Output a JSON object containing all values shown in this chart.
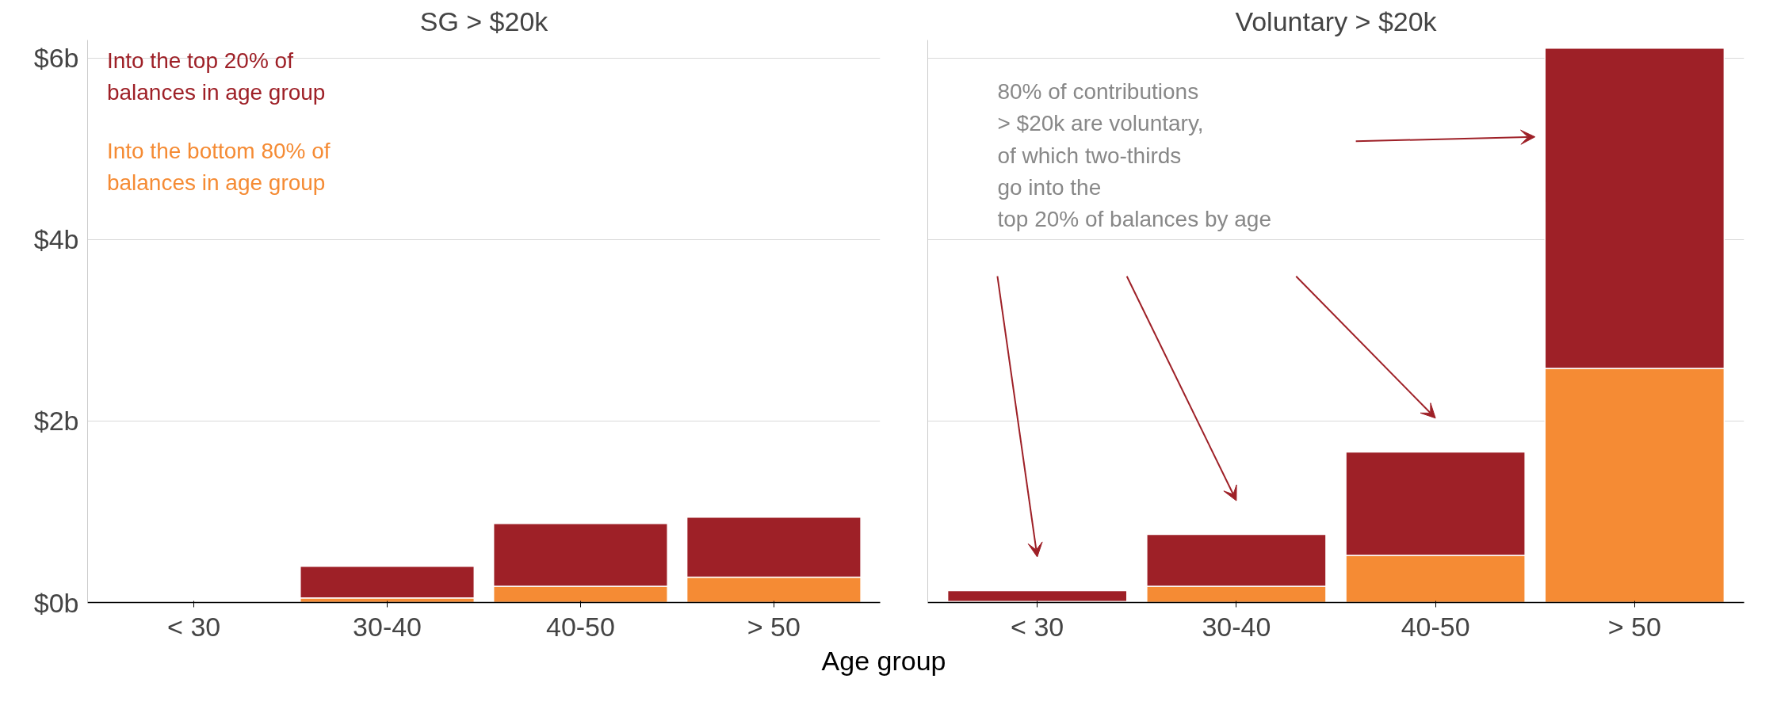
{
  "chart_data": [
    {
      "type": "bar",
      "title": "SG > $20k",
      "xlabel": "Age group",
      "stacked": true,
      "categories": [
        "< 30",
        "30-40",
        "40-50",
        "> 50"
      ],
      "ylim": [
        0,
        6.2
      ],
      "yticks": [
        {
          "value": 0,
          "label": "$0b"
        },
        {
          "value": 2,
          "label": "$2b"
        },
        {
          "value": 4,
          "label": "$4b"
        },
        {
          "value": 6,
          "label": "$6b"
        }
      ],
      "grid": "y",
      "legend": "top left",
      "series": [
        {
          "name": "Into the bottom 80% of balances in age group",
          "color": "#f58b34",
          "values": [
            null,
            0.05,
            0.18,
            0.28
          ]
        },
        {
          "name": "Into the top 20% of balances in age group",
          "color": "#9e2027",
          "values": [
            0.01,
            0.35,
            0.69,
            0.66
          ]
        }
      ]
    },
    {
      "type": "bar",
      "title": "Voluntary > $20k",
      "stacked": true,
      "categories": [
        "< 30",
        "30-40",
        "40-50",
        "> 50"
      ],
      "ylim": [
        0,
        6.2
      ],
      "yticks": [
        0,
        2,
        4,
        6
      ],
      "grid": "y",
      "tick_labels": "x",
      "annotations": [
        "80% of contributions\n> $20k are voluntary,\nof which two-thirds\ngo into the\ntop 20% of balances by age"
      ],
      "series": [
        {
          "color": "#f58b34",
          "values": [
            0.01,
            0.18,
            0.52,
            2.58
          ]
        },
        {
          "color": "#9e2027",
          "values": [
            0.12,
            0.57,
            1.14,
            3.53
          ]
        }
      ]
    }
  ]
}
